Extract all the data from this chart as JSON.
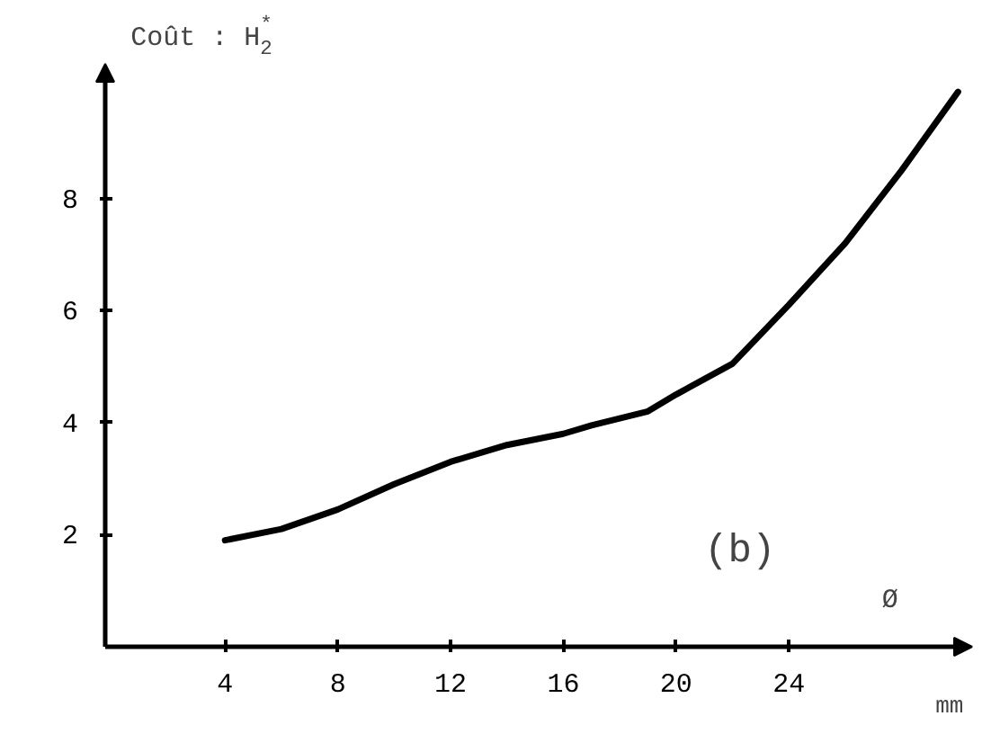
{
  "chart_data": {
    "type": "line",
    "ylabel": "Coût : H$_{2}$$^{*}$",
    "xlabel": "Ø",
    "annotations": [
      "(b)",
      "mm"
    ],
    "x": [
      4,
      6,
      8,
      10,
      12,
      14,
      16,
      17,
      19,
      20,
      22,
      24,
      26,
      28,
      30
    ],
    "series": [
      {
        "color": "#000000",
        "values": [
          1.9,
          2.1,
          2.45,
          2.9,
          3.3,
          3.6,
          3.8,
          3.95,
          4.2,
          4.5,
          5.05,
          6.1,
          7.2,
          8.5,
          9.9
        ]
      }
    ],
    "xlim": [
      -0.25,
      30.5
    ],
    "ylim": [
      0,
      10.4
    ],
    "xticks": [
      4,
      8,
      12,
      16,
      20,
      24
    ],
    "yticks": [
      2,
      4,
      6,
      8
    ],
    "grid": false,
    "marker": "none",
    "line_style": "solid"
  }
}
